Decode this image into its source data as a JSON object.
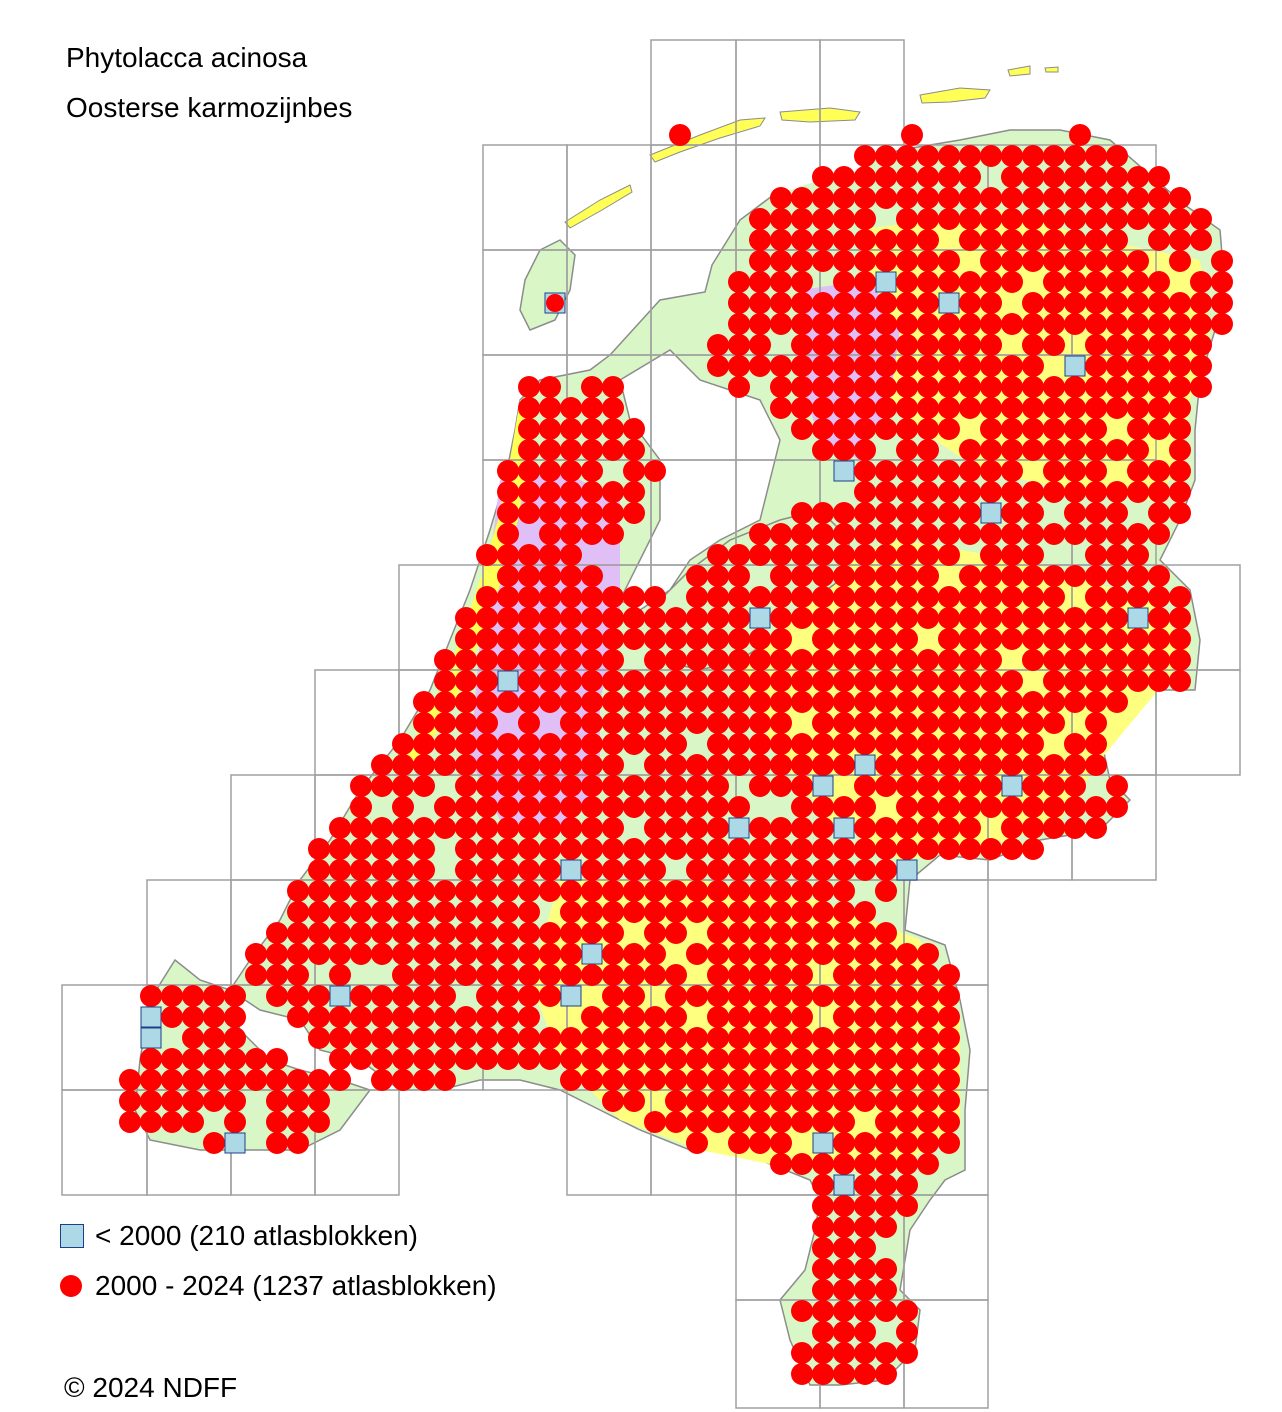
{
  "title": {
    "species_latin": "Phytolacca acinosa",
    "species_dutch": "Oosterse karmozijnbes"
  },
  "legend": [
    {
      "symbol": "square",
      "color": "#add8e6",
      "label": "< 2000   (210 atlasblokken)"
    },
    {
      "symbol": "circle",
      "color": "#ff0000",
      "label": "2000 - 2024 (1237 atlasblokken)"
    }
  ],
  "copyright": "© 2024 NDFF",
  "colors": {
    "water": "#ffffff",
    "land_green": "#d9f7c6",
    "land_yellow": "#ffff7f",
    "land_purple": "#dfbff5",
    "coast_yellow": "#ffff55",
    "grid_line": "#a0a0a0",
    "border_line": "#8c8c8c",
    "record_recent": "#ff0000",
    "record_old": "#add8e6",
    "record_old_border": "#1e3f8a"
  },
  "icons": {
    "recent_record": "red-circle",
    "old_record": "light-blue-square"
  }
}
